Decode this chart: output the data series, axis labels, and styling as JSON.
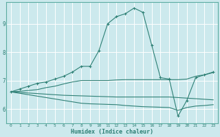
{
  "xlabel": "Humidex (Indice chaleur)",
  "background_color": "#cce9ed",
  "grid_color": "#ffffff",
  "line_color": "#2d7f74",
  "xlim": [
    -0.5,
    23.5
  ],
  "ylim": [
    5.5,
    9.75
  ],
  "yticks": [
    6,
    7,
    8,
    9
  ],
  "xticks": [
    0,
    1,
    2,
    3,
    4,
    5,
    6,
    7,
    8,
    9,
    10,
    11,
    12,
    13,
    14,
    15,
    16,
    17,
    18,
    19,
    20,
    21,
    22,
    23
  ],
  "lines": [
    {
      "x": [
        0,
        1,
        2,
        3,
        4,
        5,
        6,
        7,
        8,
        9,
        10,
        11,
        12,
        13,
        14,
        15,
        16,
        17,
        18,
        19,
        20,
        21,
        22,
        23
      ],
      "y": [
        6.6,
        6.7,
        6.8,
        6.9,
        6.95,
        7.05,
        7.15,
        7.3,
        7.5,
        7.5,
        8.05,
        9.0,
        9.25,
        9.35,
        9.55,
        9.4,
        8.25,
        7.1,
        7.05,
        5.75,
        6.3,
        7.1,
        7.2,
        7.3
      ],
      "marker": true
    },
    {
      "x": [
        0,
        1,
        2,
        3,
        4,
        5,
        6,
        7,
        8,
        9,
        10,
        11,
        12,
        13,
        14,
        15,
        16,
        17,
        18,
        19,
        20,
        21,
        22,
        23
      ],
      "y": [
        6.6,
        6.62,
        6.65,
        6.68,
        6.75,
        6.8,
        6.88,
        6.95,
        7.0,
        7.0,
        7.0,
        7.0,
        7.02,
        7.03,
        7.03,
        7.03,
        7.03,
        7.03,
        7.03,
        7.03,
        7.05,
        7.15,
        7.2,
        7.28
      ],
      "marker": false
    },
    {
      "x": [
        0,
        1,
        2,
        3,
        4,
        5,
        6,
        7,
        8,
        9,
        10,
        11,
        12,
        13,
        14,
        15,
        16,
        17,
        18,
        19,
        20,
        21,
        22,
        23
      ],
      "y": [
        6.6,
        6.58,
        6.56,
        6.54,
        6.52,
        6.5,
        6.48,
        6.47,
        6.46,
        6.45,
        6.44,
        6.43,
        6.42,
        6.42,
        6.42,
        6.42,
        6.42,
        6.42,
        6.42,
        6.4,
        6.38,
        6.36,
        6.34,
        6.32
      ],
      "marker": false
    },
    {
      "x": [
        0,
        1,
        2,
        3,
        4,
        5,
        6,
        7,
        8,
        9,
        10,
        11,
        12,
        13,
        14,
        15,
        16,
        17,
        18,
        19,
        20,
        21,
        22,
        23
      ],
      "y": [
        6.6,
        6.55,
        6.5,
        6.45,
        6.4,
        6.35,
        6.3,
        6.25,
        6.2,
        6.18,
        6.17,
        6.16,
        6.15,
        6.12,
        6.1,
        6.08,
        6.07,
        6.06,
        6.05,
        5.95,
        6.05,
        6.1,
        6.12,
        6.15
      ],
      "marker": false
    }
  ]
}
